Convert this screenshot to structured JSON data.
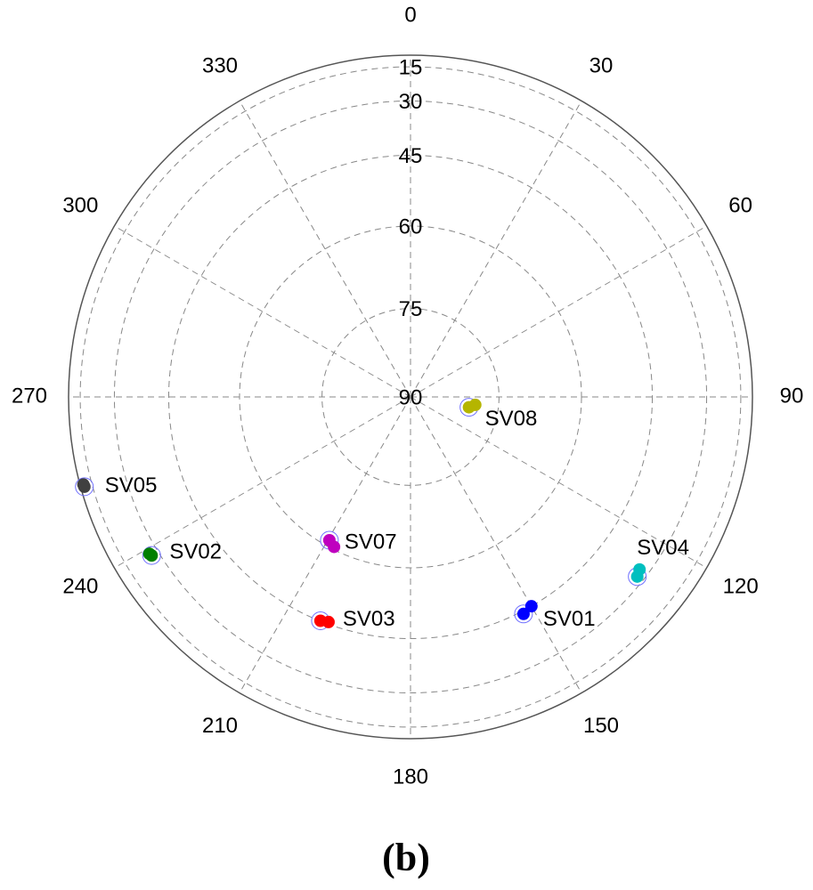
{
  "chart_data": {
    "type": "polar-scatter",
    "radial_scale": "cosine",
    "rlim": [
      90,
      0
    ],
    "r_ticks": [
      90,
      75,
      60,
      45,
      30,
      15
    ],
    "theta_ticks": [
      0,
      30,
      60,
      90,
      120,
      150,
      180,
      210,
      240,
      270,
      300,
      330
    ],
    "label_color": "#0000ff",
    "series": [
      {
        "name": "SV08",
        "color": "#b5b500",
        "azimuth": [
          100,
          97
        ],
        "elevation": [
          80,
          79
        ]
      },
      {
        "name": "SV05",
        "color": "#404040",
        "azimuth": [
          254.6,
          255
        ],
        "elevation": [
          8.4,
          8
        ]
      },
      {
        "name": "SV02",
        "color": "#007f00",
        "azimuth": [
          238.5,
          239
        ],
        "elevation": [
          27.4,
          27
        ]
      },
      {
        "name": "SV07",
        "color": "#bf00bf",
        "azimuth": [
          209.5,
          207
        ],
        "elevation": [
          61.2,
          60.5
        ]
      },
      {
        "name": "SV03",
        "color": "#ff0000",
        "azimuth": [
          201.9,
          200
        ],
        "elevation": [
          45.1,
          45.5
        ]
      },
      {
        "name": "SV01",
        "color": "#0000ff",
        "azimuth": [
          152.5,
          150
        ],
        "elevation": [
          44.3,
          45
        ]
      },
      {
        "name": "SV04",
        "color": "#00bfbf",
        "azimuth": [
          128.4,
          127
        ],
        "elevation": [
          32.2,
          33
        ]
      }
    ],
    "caption": "(b)"
  }
}
